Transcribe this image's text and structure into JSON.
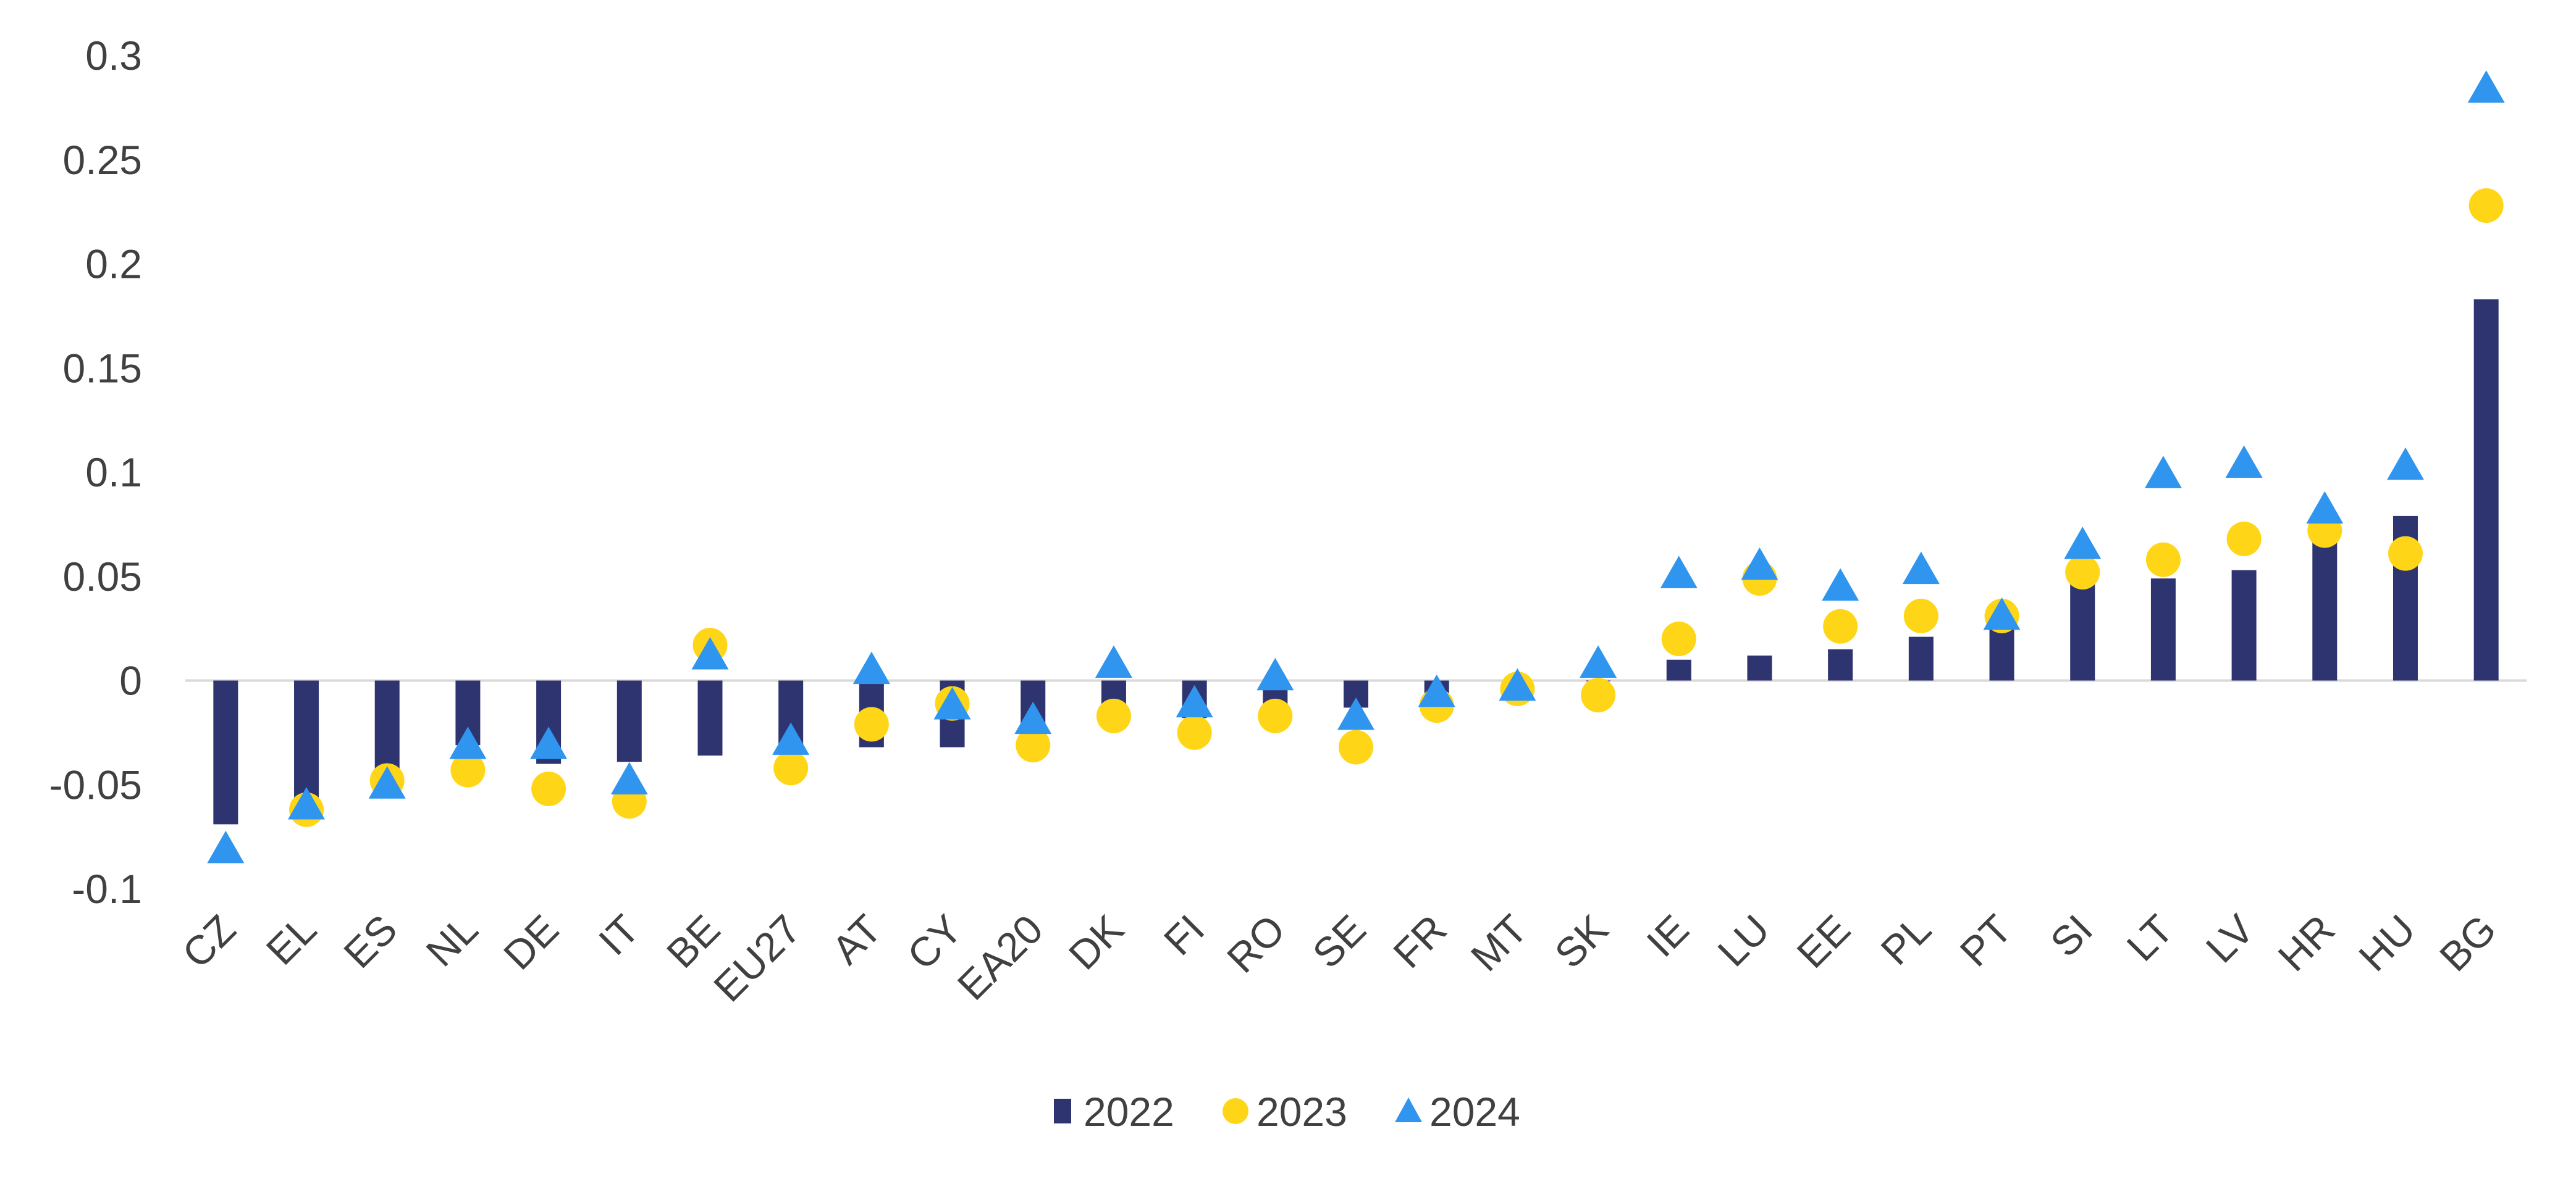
{
  "chart_data": {
    "type": "bar",
    "categories": [
      "CZ",
      "EL",
      "ES",
      "NL",
      "DE",
      "IT",
      "BE",
      "EU27",
      "AT",
      "CY",
      "EA20",
      "DK",
      "FI",
      "RO",
      "SE",
      "FR",
      "MT",
      "SK",
      "IE",
      "LU",
      "EE",
      "PL",
      "PT",
      "SI",
      "LT",
      "LV",
      "HR",
      "HU",
      "BG"
    ],
    "series": [
      {
        "name": "2022",
        "mark": "bar",
        "color": "#2e3470",
        "values": [
          -0.069,
          -0.06,
          -0.048,
          -0.031,
          -0.04,
          -0.039,
          -0.036,
          -0.031,
          -0.032,
          -0.032,
          -0.025,
          -0.012,
          -0.018,
          -0.012,
          -0.013,
          -0.009,
          -0.003,
          0.0,
          0.01,
          0.012,
          0.015,
          0.021,
          0.026,
          0.047,
          0.049,
          0.053,
          0.068,
          0.079,
          0.183
        ]
      },
      {
        "name": "2023",
        "mark": "circle",
        "color": "#ffd617",
        "values": [
          null,
          -0.062,
          -0.048,
          -0.043,
          -0.052,
          -0.058,
          0.017,
          -0.042,
          -0.021,
          -0.011,
          -0.031,
          -0.017,
          -0.025,
          -0.017,
          -0.032,
          -0.012,
          -0.004,
          -0.007,
          0.02,
          0.049,
          0.026,
          0.031,
          0.031,
          0.052,
          0.058,
          0.068,
          0.072,
          0.061,
          0.228
        ]
      },
      {
        "name": "2024",
        "mark": "triangle",
        "color": "#2f95ee",
        "values": [
          -0.081,
          -0.06,
          -0.05,
          -0.031,
          -0.031,
          -0.048,
          0.012,
          -0.029,
          0.005,
          -0.012,
          -0.019,
          0.008,
          -0.011,
          0.002,
          -0.017,
          -0.006,
          -0.003,
          0.008,
          0.051,
          0.055,
          0.045,
          0.053,
          0.031,
          0.065,
          0.099,
          0.104,
          0.082,
          0.103,
          0.284
        ]
      }
    ],
    "y_ticks": [
      "0.3",
      "0.25",
      "0.2",
      "0.15",
      "0.1",
      "0.05",
      "0",
      "-0.05",
      "-0.1"
    ],
    "y_tick_values": [
      0.3,
      0.25,
      0.2,
      0.15,
      0.1,
      0.05,
      0,
      -0.05,
      -0.1
    ],
    "ylim": [
      -0.1,
      0.3
    ],
    "grid": false,
    "legend_position": "bottom-center"
  }
}
